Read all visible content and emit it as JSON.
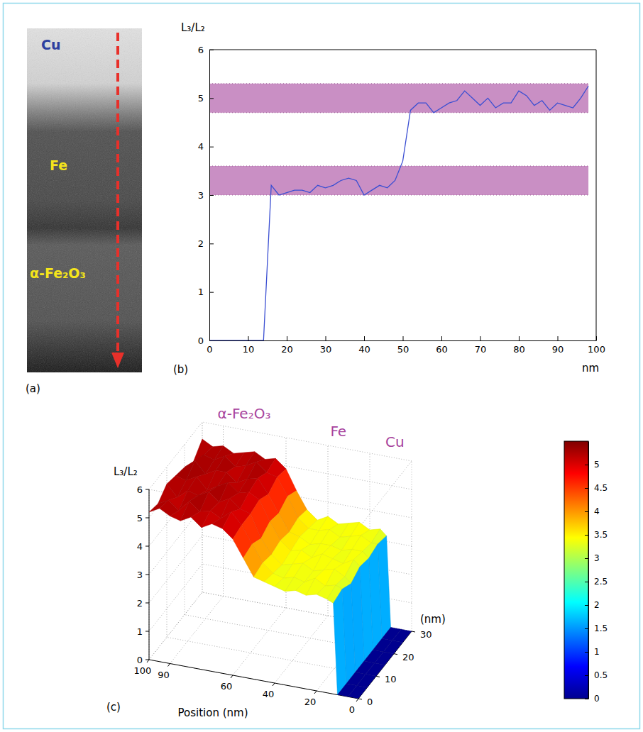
{
  "chart_data": [
    {
      "type": "micrograph",
      "title": "(a)",
      "labels": [
        "Cu",
        "Fe",
        "α-Fe₂O₃"
      ]
    },
    {
      "type": "line",
      "title": "(b)",
      "xlabel": "nm",
      "ylabel": "L₃/L₂",
      "x": [
        0,
        2,
        4,
        6,
        8,
        10,
        12,
        14,
        16,
        18,
        20,
        22,
        24,
        26,
        28,
        30,
        32,
        34,
        36,
        38,
        40,
        42,
        44,
        46,
        48,
        50,
        52,
        54,
        56,
        58,
        60,
        62,
        64,
        66,
        68,
        70,
        72,
        74,
        76,
        78,
        80,
        82,
        84,
        86,
        88,
        90,
        92,
        94,
        96,
        98
      ],
      "values": [
        0,
        0,
        0,
        0,
        0,
        0,
        0,
        0,
        3.2,
        3.0,
        3.05,
        3.1,
        3.1,
        3.05,
        3.2,
        3.15,
        3.2,
        3.3,
        3.35,
        3.3,
        3.0,
        3.1,
        3.2,
        3.15,
        3.3,
        3.7,
        4.75,
        4.9,
        4.9,
        4.7,
        4.8,
        4.9,
        4.95,
        5.15,
        5.0,
        4.85,
        5.0,
        4.8,
        4.9,
        4.9,
        5.15,
        5.05,
        4.85,
        4.95,
        4.75,
        4.9,
        4.85,
        4.8,
        5.0,
        5.25
      ],
      "color": "#3b4fd2",
      "xlim": [
        0,
        100
      ],
      "xticks": [
        0,
        10,
        20,
        30,
        40,
        50,
        60,
        70,
        80,
        90,
        100
      ],
      "ylim": [
        0,
        6
      ],
      "yticks": [
        0,
        1,
        2,
        3,
        4,
        5,
        6
      ],
      "bands": [
        {
          "range": [
            3.0,
            3.6
          ],
          "xrange": [
            0,
            98
          ]
        },
        {
          "range": [
            4.7,
            5.3
          ],
          "xrange": [
            0,
            98
          ]
        }
      ]
    },
    {
      "type": "surface",
      "title": "(c)",
      "xlabel": "Position (nm)",
      "ylabel": "(nm)",
      "zlabel": "L₃/L₂",
      "annotations": [
        "α-Fe₂O₃",
        "Fe",
        "Cu"
      ],
      "x": [
        0,
        5,
        10,
        12,
        15,
        20,
        25,
        30,
        35,
        40,
        45,
        50,
        55,
        60,
        65,
        70,
        75,
        80,
        85,
        90,
        95,
        100
      ],
      "y": [
        0,
        5,
        10,
        15,
        20,
        25,
        30
      ],
      "z": [
        [
          0,
          0,
          0,
          3.2,
          3.3,
          3.4,
          3.3,
          3.4,
          3.3,
          3.4,
          3.5,
          3.6,
          4.2,
          4.8,
          5.1,
          5.2,
          5.0,
          5.3,
          5.1,
          5.2,
          5.4,
          5.2
        ],
        [
          0,
          0,
          0,
          3.3,
          3.4,
          3.3,
          3.5,
          3.3,
          3.4,
          3.3,
          3.4,
          3.7,
          4.3,
          4.9,
          5.3,
          5.0,
          5.2,
          5.1,
          5.4,
          5.0,
          5.3,
          5.1
        ],
        [
          0,
          0,
          0,
          3.1,
          3.3,
          3.5,
          3.4,
          3.3,
          3.5,
          3.4,
          3.3,
          3.6,
          4.1,
          4.9,
          5.0,
          5.3,
          5.1,
          5.4,
          5.2,
          5.3,
          5.0,
          5.4
        ],
        [
          0,
          0,
          0,
          3.3,
          3.5,
          3.3,
          3.4,
          3.5,
          3.3,
          3.5,
          3.4,
          3.7,
          4.3,
          5.0,
          5.2,
          5.1,
          5.4,
          5.2,
          5.0,
          5.4,
          5.2,
          5.3
        ],
        [
          0,
          0,
          0,
          3.2,
          3.4,
          3.4,
          3.3,
          3.4,
          3.4,
          3.3,
          3.5,
          3.6,
          4.2,
          4.8,
          5.3,
          5.2,
          5.0,
          5.3,
          5.3,
          5.1,
          5.5,
          5.2
        ],
        [
          0,
          0,
          0,
          3.3,
          3.3,
          3.5,
          3.4,
          3.3,
          3.5,
          3.4,
          3.4,
          3.7,
          4.4,
          5.0,
          5.1,
          5.4,
          5.2,
          5.1,
          5.4,
          5.2,
          5.3,
          5.0
        ],
        [
          0,
          0,
          0,
          3.2,
          3.4,
          3.3,
          3.5,
          3.4,
          3.3,
          3.5,
          3.3,
          3.6,
          4.2,
          4.9,
          5.2,
          5.1,
          5.3,
          5.2,
          5.1,
          5.3,
          5.2,
          5.4
        ]
      ],
      "xlim": [
        0,
        100
      ],
      "xticks": [
        0,
        20,
        40,
        60,
        90,
        100
      ],
      "ylim": [
        0,
        30
      ],
      "yticks": [
        0,
        10,
        20,
        30
      ],
      "zlim": [
        0,
        6
      ],
      "zticks": [
        0,
        1,
        2,
        3,
        4,
        5,
        6
      ],
      "colorbar": {
        "range": [
          0,
          5.5
        ],
        "ticks": [
          0,
          0.5,
          1,
          1.5,
          2,
          2.5,
          3,
          3.5,
          4,
          4.5,
          5
        ]
      }
    }
  ]
}
